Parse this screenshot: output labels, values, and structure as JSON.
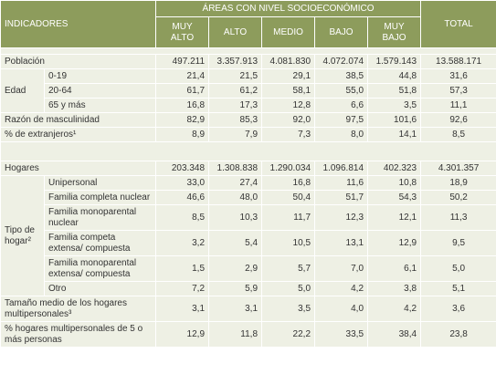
{
  "header": {
    "indicators": "INDICADORES",
    "areas": "ÁREAS CON NIVEL SOCIOECONÓMICO",
    "total": "TOTAL",
    "levels": [
      "MUY ALTO",
      "ALTO",
      "MEDIO",
      "BAJO",
      "MUY BAJO"
    ]
  },
  "sections": [
    [
      {
        "label": "Población",
        "values": [
          "497.211",
          "3.357.913",
          "4.081.830",
          "4.072.074",
          "1.579.143"
        ],
        "total": "13.588.171"
      },
      {
        "group": "Edad",
        "items": [
          {
            "label": "0-19",
            "values": [
              "21,4",
              "21,5",
              "29,1",
              "38,5",
              "44,8"
            ],
            "total": "31,6"
          },
          {
            "label": "20-64",
            "values": [
              "61,7",
              "61,2",
              "58,1",
              "55,0",
              "51,8"
            ],
            "total": "57,3"
          },
          {
            "label": "65 y más",
            "values": [
              "16,8",
              "17,3",
              "12,8",
              "6,6",
              "3,5"
            ],
            "total": "11,1"
          }
        ]
      },
      {
        "label": "Razón de masculinidad",
        "values": [
          "82,9",
          "85,3",
          "92,0",
          "97,5",
          "101,6"
        ],
        "total": "92,6"
      },
      {
        "label": "% de extranjeros¹",
        "values": [
          "8,9",
          "7,9",
          "7,3",
          "8,0",
          "14,1"
        ],
        "total": "8,5"
      }
    ],
    [
      {
        "label": "Hogares",
        "values": [
          "203.348",
          "1.308.838",
          "1.290.034",
          "1.096.814",
          "402.323"
        ],
        "total": "4.301.357"
      },
      {
        "group": "Tipo de hogar²",
        "items": [
          {
            "label": "Unipersonal",
            "values": [
              "33,0",
              "27,4",
              "16,8",
              "11,6",
              "10,8"
            ],
            "total": "18,9"
          },
          {
            "label": "Familia completa nuclear",
            "values": [
              "46,6",
              "48,0",
              "50,4",
              "51,7",
              "54,3"
            ],
            "total": "50,2"
          },
          {
            "label": "Familia monoparental nuclear",
            "values": [
              "8,5",
              "10,3",
              "11,7",
              "12,3",
              "12,1"
            ],
            "total": "11,3"
          },
          {
            "label": "Familia competa extensa/ compuesta",
            "values": [
              "3,2",
              "5,4",
              "10,5",
              "13,1",
              "12,9"
            ],
            "total": "9,5"
          },
          {
            "label": "Familia monoparental extensa/ compuesta",
            "values": [
              "1,5",
              "2,9",
              "5,7",
              "7,0",
              "6,1"
            ],
            "total": "5,0"
          },
          {
            "label": "Otro",
            "values": [
              "7,2",
              "5,9",
              "5,0",
              "4,2",
              "3,8"
            ],
            "total": "5,1"
          }
        ]
      },
      {
        "label": "Tamaño medio de los hogares multipersonales³",
        "values": [
          "3,1",
          "3,1",
          "3,5",
          "4,0",
          "4,2"
        ],
        "total": "3,6"
      },
      {
        "label": "% hogares multipersonales de 5 o más personas",
        "values": [
          "12,9",
          "11,8",
          "22,2",
          "33,5",
          "38,4"
        ],
        "total": "23,8"
      }
    ]
  ]
}
